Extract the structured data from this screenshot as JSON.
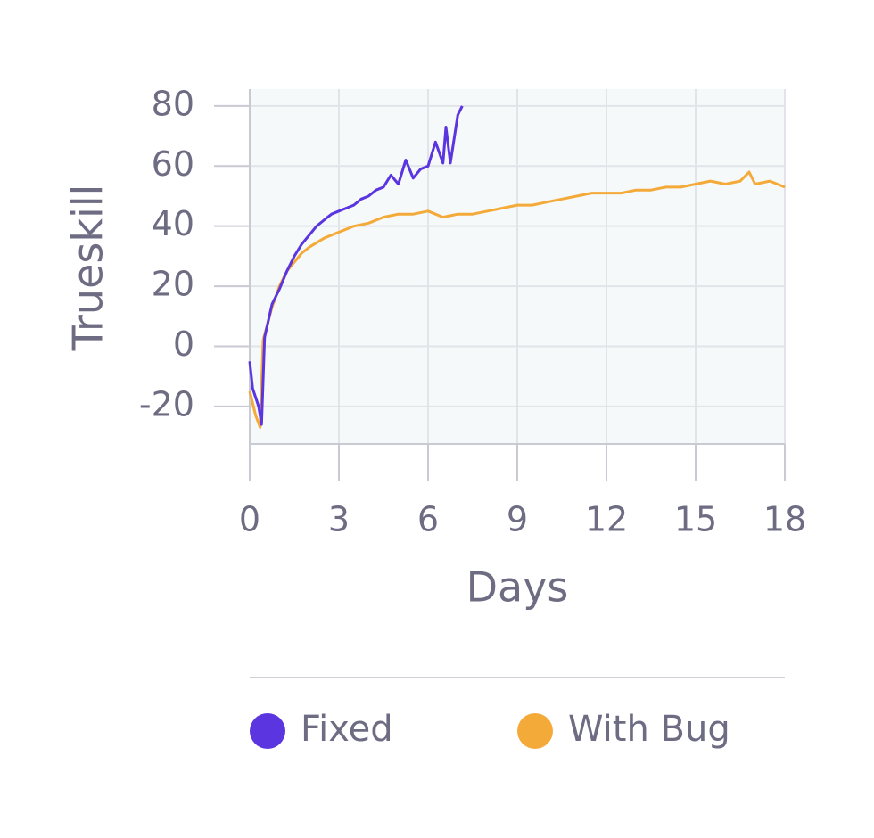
{
  "chart_data": {
    "type": "line",
    "x_label": "Days",
    "y_label": "Trueskill",
    "xlim": [
      0,
      18
    ],
    "xticks": [
      0,
      3,
      6,
      9,
      12,
      15,
      18
    ],
    "ylim": [
      -32.5,
      85.6
    ],
    "yticks": [
      -20,
      0,
      20,
      40,
      60,
      80
    ],
    "grid": true,
    "legend": "bottom",
    "series": [
      {
        "name": "Fixed",
        "color": "#5a35e0",
        "x": [
          0,
          0.1,
          0.3,
          0.4,
          0.5,
          0.75,
          1,
          1.25,
          1.5,
          1.75,
          2,
          2.25,
          2.5,
          2.75,
          3,
          3.25,
          3.5,
          3.75,
          4,
          4.25,
          4.5,
          4.75,
          5,
          5.25,
          5.5,
          5.75,
          6,
          6.25,
          6.5,
          6.6,
          6.75,
          7,
          7.15
        ],
        "values": [
          -5,
          -14,
          -20,
          -26,
          3,
          14,
          19,
          25,
          30,
          34,
          37,
          40,
          42,
          44,
          45,
          46,
          47,
          49,
          50,
          52,
          53,
          57,
          54,
          62,
          56,
          59,
          60,
          68,
          61,
          73,
          61,
          77,
          80
        ]
      },
      {
        "name": "With Bug",
        "color": "#f4aa38",
        "x": [
          0,
          0.2,
          0.35,
          0.45,
          0.75,
          1,
          1.25,
          1.5,
          1.75,
          2,
          2.5,
          3,
          3.5,
          4,
          4.5,
          5,
          5.5,
          6,
          6.5,
          7,
          7.5,
          8,
          8.5,
          9,
          9.5,
          10,
          10.5,
          11,
          11.5,
          12,
          12.5,
          13,
          13.5,
          14,
          14.5,
          15,
          15.5,
          16,
          16.5,
          16.8,
          17,
          17.5,
          18
        ],
        "values": [
          -15,
          -23,
          -27,
          2,
          13,
          20,
          25,
          28,
          31,
          33,
          36,
          38,
          40,
          41,
          43,
          44,
          44,
          45,
          43,
          44,
          44,
          45,
          46,
          47,
          47,
          48,
          49,
          50,
          51,
          51,
          51,
          52,
          52,
          53,
          53,
          54,
          55,
          54,
          55,
          58,
          54,
          55,
          53
        ]
      }
    ]
  }
}
